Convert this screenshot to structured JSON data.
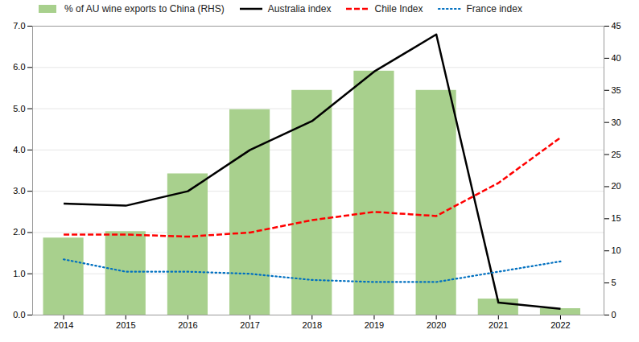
{
  "chart_data": {
    "type": "bar",
    "x": [
      2014,
      2015,
      2016,
      2017,
      2018,
      2019,
      2020,
      2021,
      2022
    ],
    "xlim": [
      2013.5,
      2022.7
    ],
    "xticks": [
      2014,
      2015,
      2016,
      2017,
      2018,
      2019,
      2020,
      2021,
      2022
    ],
    "ylim": [
      0,
      7
    ],
    "yticks": [
      0,
      1,
      2,
      3,
      4,
      5,
      6,
      7
    ],
    "y2lim": [
      0,
      45
    ],
    "y2ticks": [
      0,
      5,
      10,
      15,
      20,
      25,
      30,
      35,
      40,
      45
    ],
    "grid": true,
    "legend": "top-left",
    "series": [
      {
        "name": "% of AU wine exports to China (RHS)",
        "type": "bar",
        "axis": "y2",
        "color": "#a8d08d",
        "values": [
          12,
          13,
          22,
          32,
          35,
          38,
          35,
          2.5,
          1
        ]
      },
      {
        "name": "Australia index",
        "type": "line",
        "color": "#000000",
        "line_style": "solid",
        "values": [
          2.7,
          2.65,
          3.0,
          4.0,
          4.7,
          5.9,
          6.8,
          0.3,
          0.15
        ]
      },
      {
        "name": "Chile Index",
        "type": "line",
        "color": "#ff0000",
        "line_style": "dashed",
        "values": [
          1.95,
          1.95,
          1.9,
          2.0,
          2.3,
          2.5,
          2.4,
          3.2,
          4.3
        ]
      },
      {
        "name": "France index",
        "type": "line",
        "color": "#0070c0",
        "line_style": "dotted",
        "values": [
          1.35,
          1.05,
          1.05,
          1.0,
          0.85,
          0.8,
          0.8,
          1.05,
          1.3
        ]
      }
    ]
  }
}
